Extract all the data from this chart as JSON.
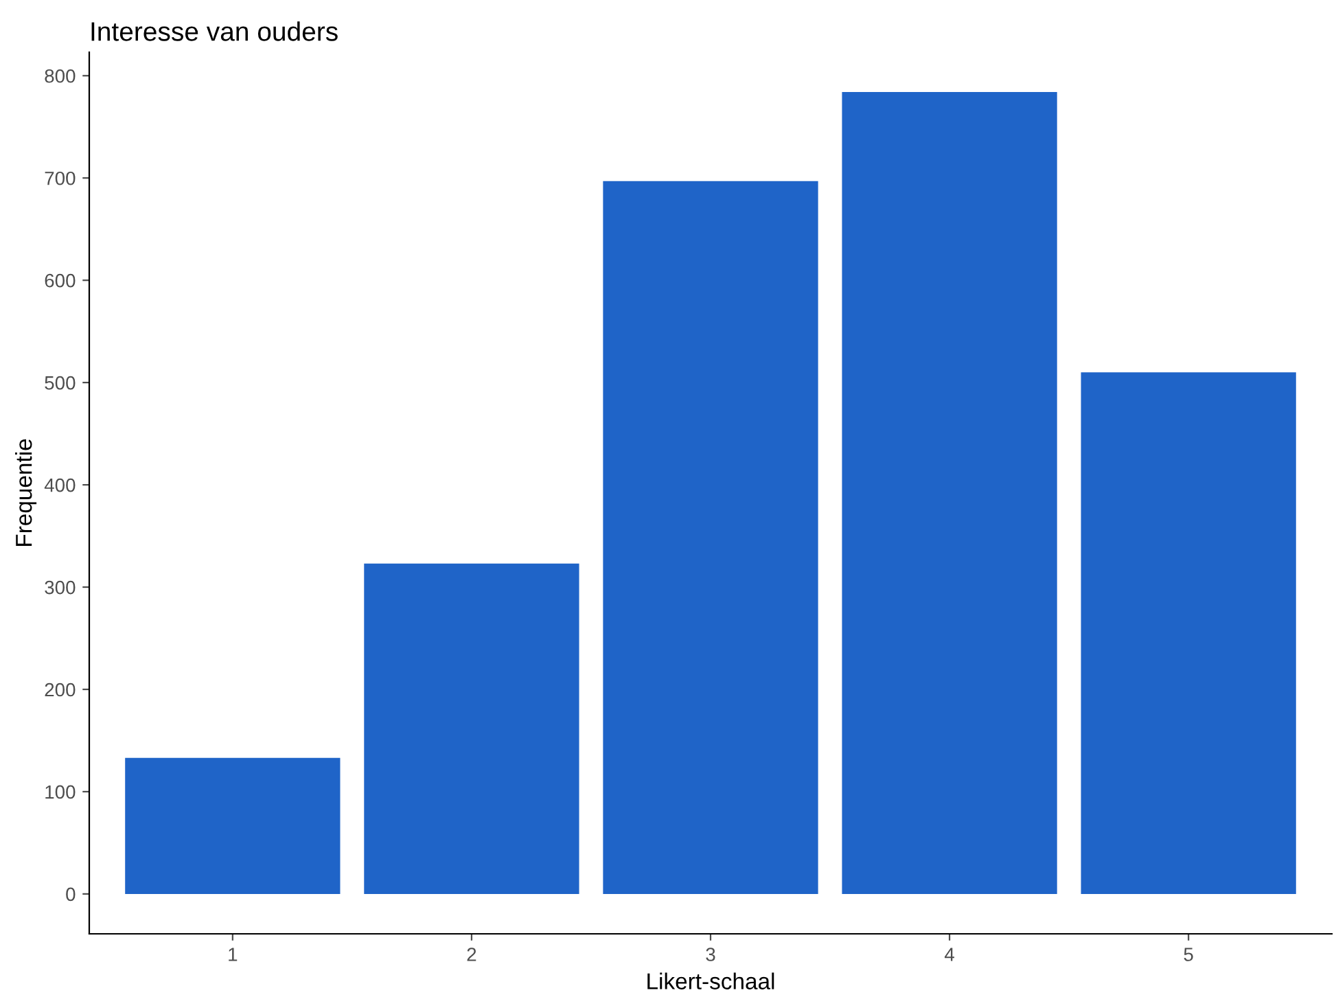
{
  "chart_data": {
    "type": "bar",
    "title": "Interesse van ouders",
    "xlabel": "Likert-schaal",
    "ylabel": "Frequentie",
    "categories": [
      "1",
      "2",
      "3",
      "4",
      "5"
    ],
    "values": [
      133,
      323,
      697,
      784,
      510
    ],
    "color": "#1f64c8",
    "ylim": [
      -39,
      823
    ],
    "yticks": [
      0,
      100,
      200,
      300,
      400,
      500,
      600,
      700,
      800
    ],
    "grid": false,
    "legend": false
  }
}
